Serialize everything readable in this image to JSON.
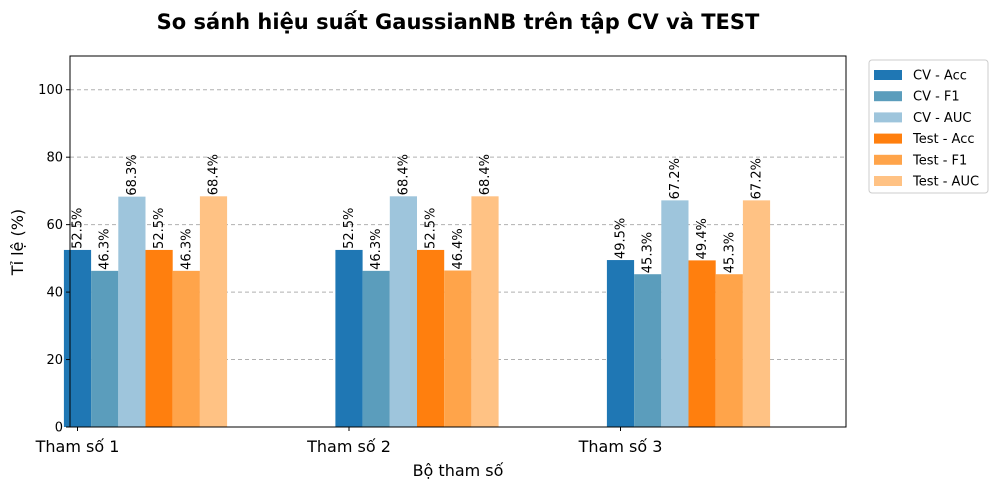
{
  "chart_data": {
    "type": "bar",
    "title": "So sánh hiệu suất GaussianNB trên tập CV và TEST",
    "xlabel": "Bộ tham số",
    "ylabel": "Tỉ lệ (%)",
    "categories": [
      "Tham số 1",
      "Tham số 2",
      "Tham số 3"
    ],
    "ylim": [
      0,
      110
    ],
    "yticks": [
      0,
      20,
      40,
      60,
      80,
      100
    ],
    "grid": "y-dashed",
    "legend_placement": "outside-top-right",
    "series": [
      {
        "name": "CV - Acc",
        "color": "#1f77b4",
        "values": [
          52.5,
          52.5,
          49.5
        ],
        "labels": [
          "52.5%",
          "52.5%",
          "49.5%"
        ]
      },
      {
        "name": "CV - F1",
        "color": "#5b9dbc",
        "values": [
          46.3,
          46.3,
          45.3
        ],
        "labels": [
          "46.3%",
          "46.3%",
          "45.3%"
        ]
      },
      {
        "name": "CV - AUC",
        "color": "#9ec5dc",
        "values": [
          68.3,
          68.4,
          67.2
        ],
        "labels": [
          "68.3%",
          "68.4%",
          "67.2%"
        ]
      },
      {
        "name": "Test - Acc",
        "color": "#ff7f0e",
        "values": [
          52.5,
          52.5,
          49.4
        ],
        "labels": [
          "52.5%",
          "52.5%",
          "49.4%"
        ]
      },
      {
        "name": "Test - F1",
        "color": "#ffa44a",
        "values": [
          46.3,
          46.4,
          45.3
        ],
        "labels": [
          "46.3%",
          "46.4%",
          "45.3%"
        ]
      },
      {
        "name": "Test - AUC",
        "color": "#ffc284",
        "values": [
          68.4,
          68.4,
          67.2
        ],
        "labels": [
          "68.4%",
          "68.4%",
          "67.2%"
        ]
      }
    ]
  }
}
